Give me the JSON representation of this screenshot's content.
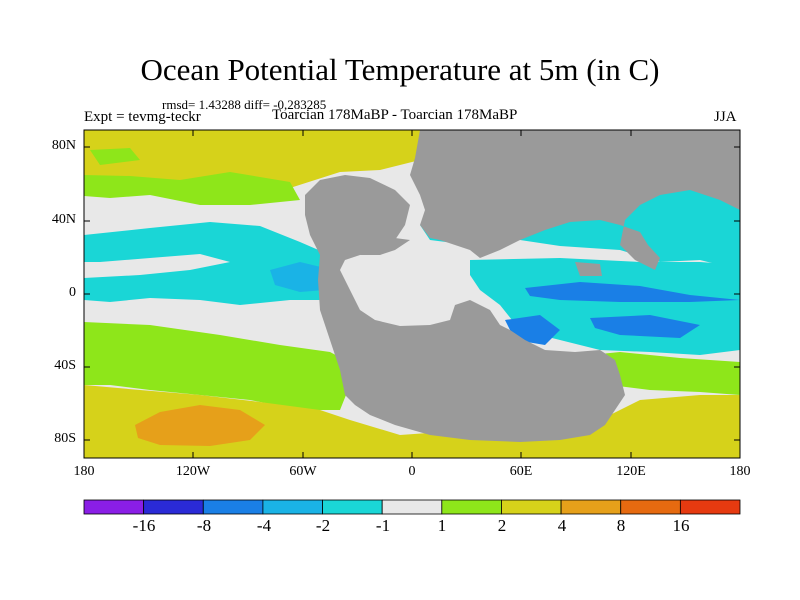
{
  "header": {
    "title": "Ocean Potential Temperature at 5m (in C)",
    "stats": "rmsd= 1.43288 diff= -0,283285",
    "experiment": "Expt = tevmg-teckr",
    "subtitle": "Toarcian 178MaBP - Toarcian 178MaBP",
    "season": "JJA"
  },
  "axes": {
    "y_labels": [
      "80N",
      "40N",
      "0",
      "40S",
      "80S"
    ],
    "x_labels": [
      "180",
      "120W",
      "60W",
      "0",
      "60E",
      "120E",
      "180"
    ]
  },
  "colorbar": {
    "labels": [
      "-16",
      "-8",
      "-4",
      "-2",
      "-1",
      "1",
      "2",
      "4",
      "8",
      "16"
    ],
    "colors": [
      "#8a1ee6",
      "#2a2ad6",
      "#1a7fe6",
      "#1ab3e6",
      "#1ad6d6",
      "#e8e8e8",
      "#8ee61a",
      "#d6d21a",
      "#e6a01a",
      "#e66a10",
      "#e63a10"
    ]
  },
  "map_colors": {
    "land": "#9a9a9a",
    "neutral": "#e8e8e8",
    "light_cyan": "#1ad6d6",
    "cyan": "#1ab3e6",
    "blue": "#1a7fe6",
    "green": "#8ee61a",
    "yellow": "#d6d21a",
    "orange": "#e6a01a"
  }
}
